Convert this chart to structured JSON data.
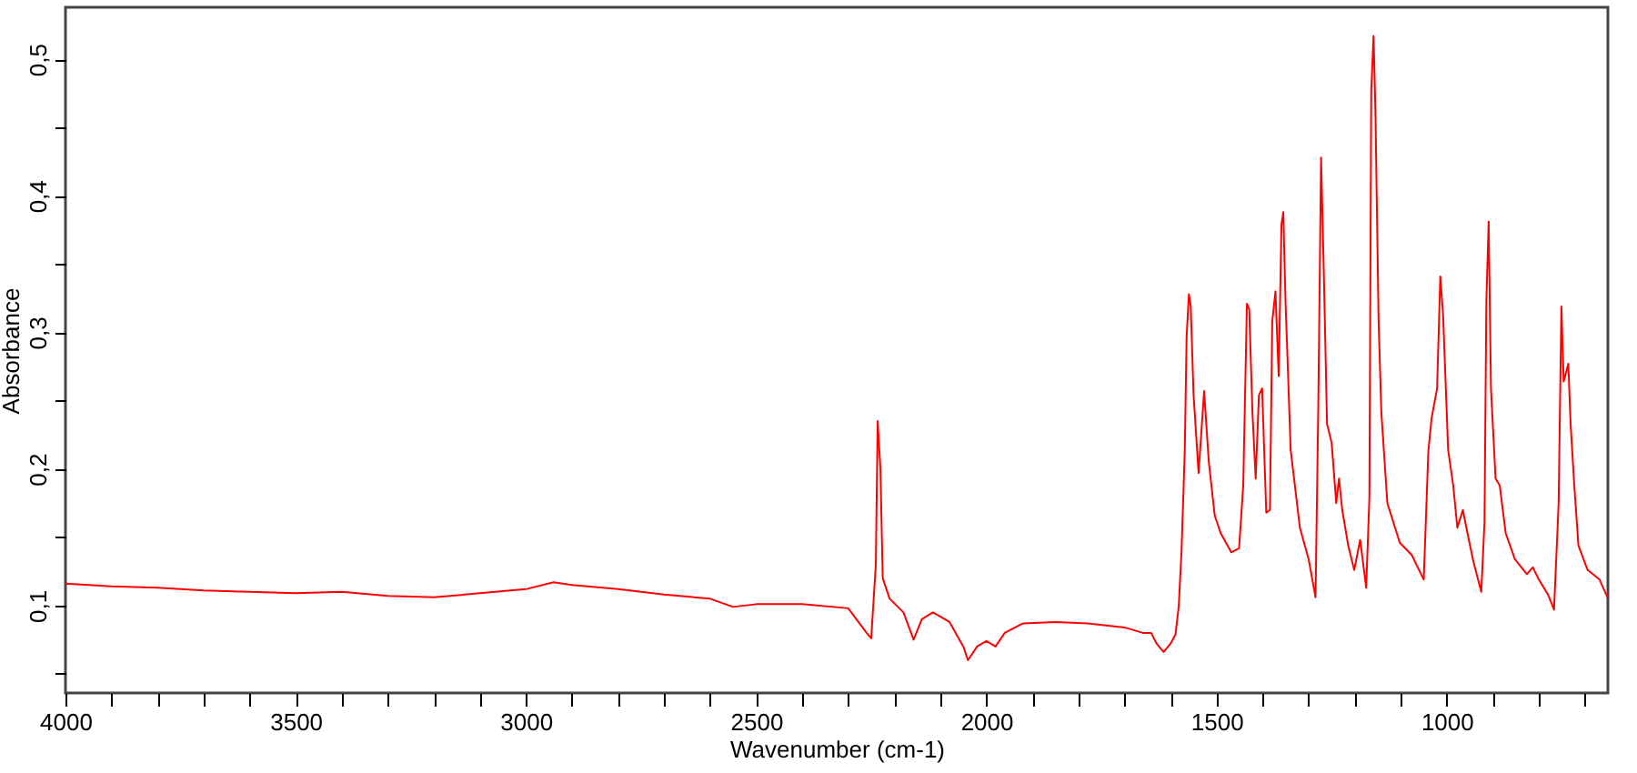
{
  "chart_data": {
    "type": "line",
    "xlabel": "Wavenumber (cm-1)",
    "ylabel": "Absorbance",
    "xlim": [
      4000,
      650
    ],
    "ylim": [
      0.036,
      0.538
    ],
    "xticks": [
      4000,
      {
        "value": 3900,
        "label": null
      },
      {
        "value": 3800,
        "label": null
      },
      {
        "value": 3700,
        "label": null
      },
      {
        "value": 3600,
        "label": null
      },
      3500,
      {
        "value": 3400,
        "label": null
      },
      {
        "value": 3300,
        "label": null
      },
      {
        "value": 3200,
        "label": null
      },
      {
        "value": 3100,
        "label": null
      },
      3000,
      {
        "value": 2900,
        "label": null
      },
      {
        "value": 2800,
        "label": null
      },
      {
        "value": 2700,
        "label": null
      },
      {
        "value": 2600,
        "label": null
      },
      2500,
      {
        "value": 2400,
        "label": null
      },
      {
        "value": 2300,
        "label": null
      },
      {
        "value": 2200,
        "label": null
      },
      {
        "value": 2100,
        "label": null
      },
      2000,
      {
        "value": 1900,
        "label": null
      },
      {
        "value": 1800,
        "label": null
      },
      {
        "value": 1700,
        "label": null
      },
      {
        "value": 1600,
        "label": null
      },
      1500,
      {
        "value": 1400,
        "label": null
      },
      {
        "value": 1300,
        "label": null
      },
      {
        "value": 1200,
        "label": null
      },
      {
        "value": 1100,
        "label": null
      },
      1000,
      {
        "value": 900,
        "label": null
      },
      {
        "value": 800,
        "label": null
      },
      {
        "value": 700,
        "label": null
      }
    ],
    "yticks": [
      {
        "value": 0.05,
        "label": null
      },
      {
        "value": 0.1,
        "label": "0,1"
      },
      {
        "value": 0.15,
        "label": null
      },
      {
        "value": 0.2,
        "label": "0,2"
      },
      {
        "value": 0.25,
        "label": null
      },
      {
        "value": 0.3,
        "label": "0,3"
      },
      {
        "value": 0.35,
        "label": null
      },
      {
        "value": 0.4,
        "label": "0,4"
      },
      {
        "value": 0.45,
        "label": null
      },
      {
        "value": 0.5,
        "label": "0,5"
      }
    ],
    "grid": false,
    "marker": "none",
    "line_style": "solid",
    "series": [
      {
        "color": "#ff0000",
        "x": [
          4000,
          3900,
          3800,
          3700,
          3600,
          3500,
          3400,
          3300,
          3200,
          3100,
          3000,
          2940,
          2900,
          2800,
          2700,
          2600,
          2550,
          2500,
          2400,
          2300,
          2260,
          2250,
          2240,
          2236,
          2230,
          2225,
          2210,
          2180,
          2158,
          2140,
          2116,
          2080,
          2050,
          2040,
          2020,
          2000,
          1980,
          1960,
          1920,
          1850,
          1780,
          1700,
          1660,
          1642,
          1630,
          1615,
          1600,
          1589,
          1582,
          1576,
          1569,
          1565,
          1560,
          1556,
          1550,
          1539,
          1527,
          1517,
          1504,
          1491,
          1468,
          1451,
          1442,
          1434,
          1429,
          1422,
          1415,
          1408,
          1401,
          1392,
          1384,
          1379,
          1372,
          1365,
          1359,
          1355,
          1350,
          1339,
          1319,
          1300,
          1285,
          1279,
          1273,
          1267,
          1260,
          1250,
          1240,
          1234,
          1227,
          1214,
          1201,
          1188,
          1175,
          1168,
          1164,
          1159,
          1155,
          1148,
          1142,
          1129,
          1102,
          1076,
          1050,
          1040,
          1033,
          1021,
          1014,
          1008,
          997,
          986,
          977,
          965,
          955,
          942,
          925,
          918,
          914,
          909,
          904,
          894,
          885,
          872,
          852,
          826,
          813,
          800,
          780,
          767,
          757,
          751,
          746,
          736,
          731,
          723,
          714,
          694,
          668,
          651
        ],
        "values": [
          0.116,
          0.114,
          0.113,
          0.111,
          0.11,
          0.109,
          0.11,
          0.107,
          0.106,
          0.109,
          0.112,
          0.117,
          0.115,
          0.112,
          0.108,
          0.105,
          0.099,
          0.101,
          0.101,
          0.098,
          0.08,
          0.076,
          0.13,
          0.235,
          0.2,
          0.12,
          0.105,
          0.095,
          0.075,
          0.09,
          0.095,
          0.088,
          0.07,
          0.06,
          0.07,
          0.074,
          0.07,
          0.08,
          0.087,
          0.088,
          0.087,
          0.084,
          0.08,
          0.08,
          0.072,
          0.066,
          0.072,
          0.079,
          0.1,
          0.14,
          0.213,
          0.297,
          0.328,
          0.319,
          0.255,
          0.197,
          0.257,
          0.206,
          0.166,
          0.153,
          0.139,
          0.142,
          0.188,
          0.321,
          0.317,
          0.241,
          0.193,
          0.254,
          0.259,
          0.168,
          0.17,
          0.308,
          0.33,
          0.268,
          0.379,
          0.388,
          0.321,
          0.214,
          0.157,
          0.134,
          0.106,
          0.246,
          0.428,
          0.344,
          0.233,
          0.219,
          0.175,
          0.193,
          0.17,
          0.144,
          0.126,
          0.148,
          0.113,
          0.179,
          0.477,
          0.517,
          0.464,
          0.308,
          0.241,
          0.175,
          0.146,
          0.137,
          0.119,
          0.213,
          0.237,
          0.259,
          0.341,
          0.313,
          0.214,
          0.188,
          0.157,
          0.17,
          0.153,
          0.132,
          0.11,
          0.161,
          0.323,
          0.381,
          0.259,
          0.193,
          0.188,
          0.153,
          0.134,
          0.123,
          0.128,
          0.119,
          0.108,
          0.097,
          0.175,
          0.319,
          0.264,
          0.277,
          0.233,
          0.188,
          0.144,
          0.126,
          0.119,
          0.106
        ]
      }
    ]
  }
}
